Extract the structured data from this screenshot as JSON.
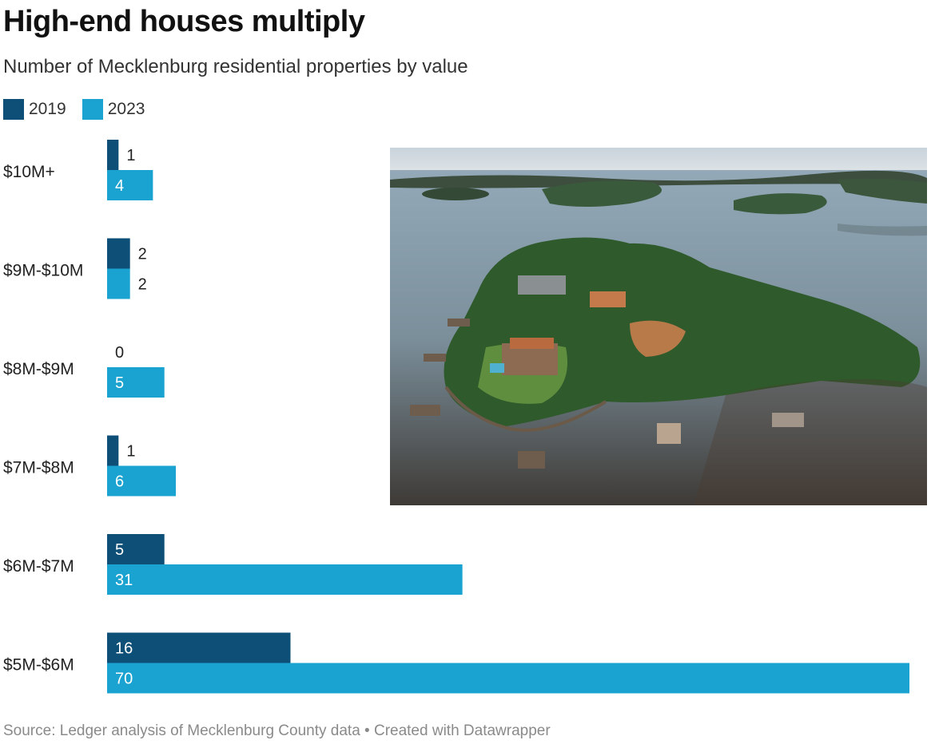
{
  "title": "High-end houses multiply",
  "subtitle": "Number of Mecklenburg residential properties by value",
  "source": "Source: Ledger analysis of Mecklenburg County data • Created with Datawrapper",
  "colors": {
    "2019": "#0d4f77",
    "2023": "#1aa3d0"
  },
  "chart_data": {
    "type": "bar",
    "orientation": "horizontal",
    "categories": [
      "$10M+",
      "$9M-$10M",
      "$8M-$9M",
      "$7M-$8M",
      "$6M-$7M",
      "$5M-$6M"
    ],
    "series": [
      {
        "name": "2019",
        "values": [
          1,
          2,
          0,
          1,
          5,
          16
        ]
      },
      {
        "name": "2023",
        "values": [
          4,
          2,
          5,
          6,
          31,
          70
        ]
      }
    ],
    "legend_position": "top-left",
    "grid": false
  }
}
